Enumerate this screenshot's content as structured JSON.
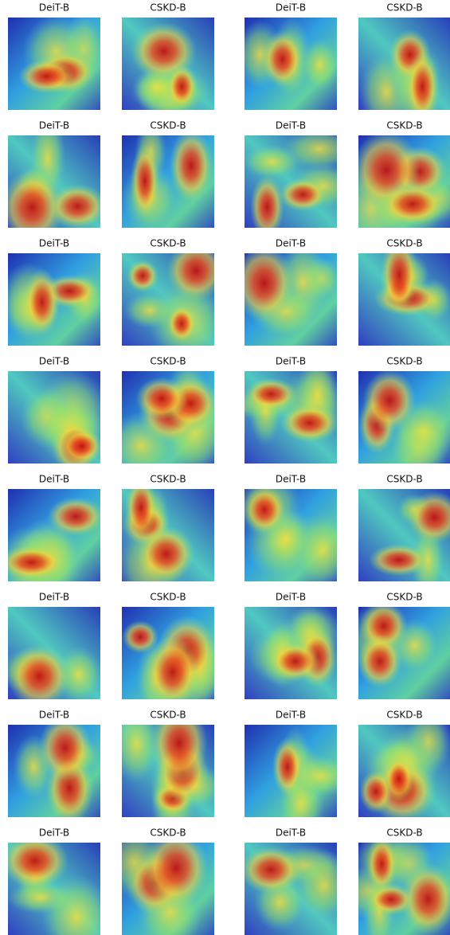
{
  "rows": [
    [
      "DeiT-B",
      "CSKD-B",
      "DeiT-B",
      "CSKD-B"
    ],
    [
      "DeiT-B",
      "CSKD-B",
      "DeiT-B",
      "CSKD-B"
    ],
    [
      "DeiT-B",
      "CSKD-B",
      "DeiT-B",
      "CSKD-B"
    ],
    [
      "DeiT-B",
      "CSKD-B",
      "DeiT-B",
      "CSKD-B"
    ],
    [
      "DeiT-B",
      "CSKD-B",
      "DeiT-B",
      "CSKD-B"
    ],
    [
      "DeiT-B",
      "CSKD-B",
      "DeiT-B",
      "CSKD-B"
    ],
    [
      "DeiT-B",
      "CSKD-B",
      "DeiT-B",
      "CSKD-B"
    ],
    [
      "DeiT-B",
      "CSKD-B",
      "DeiT-B",
      "CSKD-B"
    ]
  ]
}
